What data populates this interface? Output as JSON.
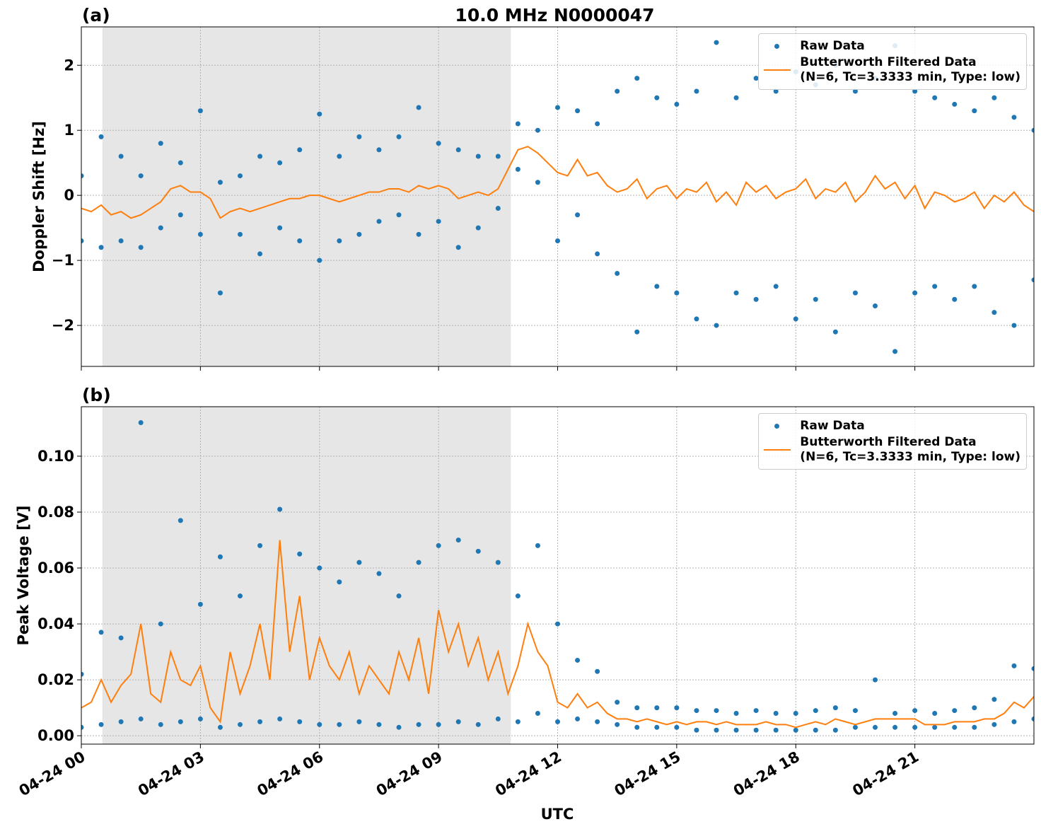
{
  "chart_data": [
    {
      "type": "scatter",
      "panel_label": "(a)",
      "title": "10.0 MHz N0000047",
      "y_label": "Doppler Shift [Hz]",
      "xlim": [
        0,
        24
      ],
      "ylim": [
        -2.63,
        2.59
      ],
      "yticks": [
        {
          "value": -2,
          "label": "−2"
        },
        {
          "value": -1,
          "label": "−1"
        },
        0,
        1,
        2
      ],
      "grid": true,
      "legend": "upper right",
      "shaded_span": [
        0.53,
        10.82
      ],
      "shade_color": "#e6e6e6",
      "series": [
        {
          "name": "Raw Data",
          "kind": "scatter",
          "color": "#1f77b4",
          "x": [
            0,
            0,
            0.5,
            0.5,
            1,
            1,
            1.5,
            1.5,
            2,
            2,
            2.5,
            2.5,
            3,
            3,
            3.5,
            3.5,
            4,
            4,
            4.5,
            4.5,
            5,
            5,
            5.5,
            5.5,
            6,
            6,
            6.5,
            6.5,
            7,
            7,
            7.5,
            7.5,
            8,
            8,
            8.5,
            8.5,
            9,
            9,
            9.5,
            9.5,
            10,
            10,
            10.5,
            10.5,
            11,
            11,
            11.5,
            11.5,
            12,
            12,
            12.5,
            12.5,
            13,
            13,
            13.5,
            13.5,
            14,
            14,
            14.5,
            14.5,
            15,
            15,
            15.5,
            15.5,
            16,
            16,
            16.5,
            16.5,
            17,
            17,
            17.5,
            17.5,
            18,
            18,
            18.5,
            18.5,
            19,
            19,
            19.5,
            19.5,
            20,
            20,
            20.5,
            20.5,
            21,
            21,
            21.5,
            21.5,
            22,
            22,
            22.5,
            22.5,
            23,
            23,
            23.5,
            23.5,
            24,
            24
          ],
          "values": [
            0.3,
            -0.7,
            0.9,
            -0.8,
            0.6,
            -0.7,
            0.3,
            -0.8,
            0.8,
            -0.5,
            0.5,
            -0.3,
            1.3,
            -0.6,
            0.2,
            -1.5,
            0.3,
            -0.6,
            0.6,
            -0.9,
            0.5,
            -0.5,
            0.7,
            -0.7,
            1.25,
            -1.0,
            0.6,
            -0.7,
            0.9,
            -0.6,
            0.7,
            -0.4,
            0.9,
            -0.3,
            1.35,
            -0.6,
            0.8,
            -0.4,
            0.7,
            -0.8,
            0.6,
            -0.5,
            0.6,
            -0.2,
            1.1,
            0.4,
            1.0,
            0.2,
            1.35,
            -0.7,
            1.3,
            -0.3,
            1.1,
            -0.9,
            1.6,
            -1.2,
            1.8,
            -2.1,
            1.5,
            -1.4,
            1.4,
            -1.5,
            1.6,
            -1.9,
            2.35,
            -2.0,
            1.5,
            -1.5,
            1.8,
            -1.6,
            1.6,
            -1.4,
            1.9,
            -1.9,
            1.7,
            -1.6,
            2.0,
            -2.1,
            1.6,
            -1.5,
            1.8,
            -1.7,
            2.3,
            -2.4,
            1.6,
            -1.5,
            1.5,
            -1.4,
            1.4,
            -1.6,
            1.3,
            -1.4,
            1.5,
            -1.8,
            1.2,
            -2.0,
            1.0,
            -1.3
          ]
        },
        {
          "name": "Butterworth Filtered Data\n(N=6, Tc=3.3333 min, Type: low)",
          "kind": "line",
          "color": "#ff7f0e",
          "x": [
            0,
            0.25,
            0.5,
            0.75,
            1,
            1.25,
            1.5,
            1.75,
            2,
            2.25,
            2.5,
            2.75,
            3,
            3.25,
            3.5,
            3.75,
            4,
            4.25,
            4.5,
            4.75,
            5,
            5.25,
            5.5,
            5.75,
            6,
            6.25,
            6.5,
            6.75,
            7,
            7.25,
            7.5,
            7.75,
            8,
            8.25,
            8.5,
            8.75,
            9,
            9.25,
            9.5,
            9.75,
            10,
            10.25,
            10.5,
            10.75,
            11,
            11.25,
            11.5,
            11.75,
            12,
            12.25,
            12.5,
            12.75,
            13,
            13.25,
            13.5,
            13.75,
            14,
            14.25,
            14.5,
            14.75,
            15,
            15.25,
            15.5,
            15.75,
            16,
            16.25,
            16.5,
            16.75,
            17,
            17.25,
            17.5,
            17.75,
            18,
            18.25,
            18.5,
            18.75,
            19,
            19.25,
            19.5,
            19.75,
            20,
            20.25,
            20.5,
            20.75,
            21,
            21.25,
            21.5,
            21.75,
            22,
            22.25,
            22.5,
            22.75,
            23,
            23.25,
            23.5,
            23.75,
            24
          ],
          "values": [
            -0.2,
            -0.25,
            -0.15,
            -0.3,
            -0.25,
            -0.35,
            -0.3,
            -0.2,
            -0.1,
            0.1,
            0.15,
            0.05,
            0.05,
            -0.05,
            -0.35,
            -0.25,
            -0.2,
            -0.25,
            -0.2,
            -0.15,
            -0.1,
            -0.05,
            -0.05,
            0,
            0,
            -0.05,
            -0.1,
            -0.05,
            0,
            0.05,
            0.05,
            0.1,
            0.1,
            0.05,
            0.15,
            0.1,
            0.15,
            0.1,
            -0.05,
            0,
            0.05,
            0,
            0.1,
            0.4,
            0.7,
            0.75,
            0.65,
            0.5,
            0.35,
            0.3,
            0.55,
            0.3,
            0.35,
            0.15,
            0.05,
            0.1,
            0.25,
            -0.05,
            0.1,
            0.15,
            -0.05,
            0.1,
            0.05,
            0.2,
            -0.1,
            0.05,
            -0.15,
            0.2,
            0.05,
            0.15,
            -0.05,
            0.05,
            0.1,
            0.25,
            -0.05,
            0.1,
            0.05,
            0.2,
            -0.1,
            0.05,
            0.3,
            0.1,
            0.2,
            -0.05,
            0.15,
            -0.2,
            0.05,
            0,
            -0.1,
            -0.05,
            0.05,
            -0.2,
            0,
            -0.1,
            0.05,
            -0.15,
            -0.25
          ]
        }
      ]
    },
    {
      "type": "scatter",
      "panel_label": "(b)",
      "y_label": "Peak Voltage [V]",
      "x_label": "UTC",
      "xlim": [
        0,
        24
      ],
      "ylim": [
        -0.003,
        0.1177
      ],
      "xticks": [
        {
          "value": 0,
          "label": "04-24 00"
        },
        {
          "value": 3,
          "label": "04-24 03"
        },
        {
          "value": 6,
          "label": "04-24 06"
        },
        {
          "value": 9,
          "label": "04-24 09"
        },
        {
          "value": 12,
          "label": "04-24 12"
        },
        {
          "value": 15,
          "label": "04-24 15"
        },
        {
          "value": 18,
          "label": "04-24 18"
        },
        {
          "value": 21,
          "label": "04-24 21"
        }
      ],
      "yticks": [
        {
          "value": 0,
          "label": "0.00"
        },
        {
          "value": 0.02,
          "label": "0.02"
        },
        {
          "value": 0.04,
          "label": "0.04"
        },
        {
          "value": 0.06,
          "label": "0.06"
        },
        {
          "value": 0.08,
          "label": "0.08"
        },
        {
          "value": 0.1,
          "label": "0.10"
        }
      ],
      "grid": true,
      "legend": "upper right",
      "shaded_span": [
        0.53,
        10.82
      ],
      "shade_color": "#e6e6e6",
      "series": [
        {
          "name": "Raw Data",
          "kind": "scatter",
          "color": "#1f77b4",
          "x": [
            0,
            0,
            0.5,
            0.5,
            1,
            1,
            1.5,
            1.5,
            2,
            2,
            2.5,
            2.5,
            3,
            3,
            3.5,
            3.5,
            4,
            4,
            4.5,
            4.5,
            5,
            5,
            5.5,
            5.5,
            6,
            6,
            6.5,
            6.5,
            7,
            7,
            7.5,
            7.5,
            8,
            8,
            8.5,
            8.5,
            9,
            9,
            9.5,
            9.5,
            10,
            10,
            10.5,
            10.5,
            11,
            11,
            11.5,
            11.5,
            12,
            12,
            12.5,
            12.5,
            13,
            13,
            13.5,
            13.5,
            14,
            14,
            14.5,
            14.5,
            15,
            15,
            15.5,
            15.5,
            16,
            16,
            16.5,
            16.5,
            17,
            17,
            17.5,
            17.5,
            18,
            18,
            18.5,
            18.5,
            19,
            19,
            19.5,
            19.5,
            20,
            20,
            20.5,
            20.5,
            21,
            21,
            21.5,
            21.5,
            22,
            22,
            22.5,
            22.5,
            23,
            23,
            23.5,
            23.5,
            24,
            24
          ],
          "values": [
            0.022,
            0.003,
            0.037,
            0.004,
            0.035,
            0.005,
            0.112,
            0.006,
            0.04,
            0.004,
            0.077,
            0.005,
            0.047,
            0.006,
            0.064,
            0.003,
            0.05,
            0.004,
            0.068,
            0.005,
            0.081,
            0.006,
            0.065,
            0.005,
            0.06,
            0.004,
            0.055,
            0.004,
            0.062,
            0.005,
            0.058,
            0.004,
            0.05,
            0.003,
            0.062,
            0.004,
            0.068,
            0.004,
            0.07,
            0.005,
            0.066,
            0.004,
            0.062,
            0.006,
            0.05,
            0.005,
            0.068,
            0.008,
            0.04,
            0.005,
            0.027,
            0.006,
            0.023,
            0.005,
            0.012,
            0.004,
            0.01,
            0.003,
            0.01,
            0.003,
            0.01,
            0.003,
            0.009,
            0.002,
            0.009,
            0.002,
            0.008,
            0.002,
            0.009,
            0.002,
            0.008,
            0.002,
            0.008,
            0.002,
            0.009,
            0.002,
            0.01,
            0.002,
            0.009,
            0.003,
            0.02,
            0.003,
            0.008,
            0.003,
            0.009,
            0.003,
            0.008,
            0.003,
            0.009,
            0.003,
            0.01,
            0.003,
            0.013,
            0.004,
            0.025,
            0.005,
            0.024,
            0.006
          ]
        },
        {
          "name": "Butterworth Filtered Data\n(N=6, Tc=3.3333 min, Type: low)",
          "kind": "line",
          "color": "#ff7f0e",
          "x": [
            0,
            0.25,
            0.5,
            0.75,
            1,
            1.25,
            1.5,
            1.75,
            2,
            2.25,
            2.5,
            2.75,
            3,
            3.25,
            3.5,
            3.75,
            4,
            4.25,
            4.5,
            4.75,
            5,
            5.25,
            5.5,
            5.75,
            6,
            6.25,
            6.5,
            6.75,
            7,
            7.25,
            7.5,
            7.75,
            8,
            8.25,
            8.5,
            8.75,
            9,
            9.25,
            9.5,
            9.75,
            10,
            10.25,
            10.5,
            10.75,
            11,
            11.25,
            11.5,
            11.75,
            12,
            12.25,
            12.5,
            12.75,
            13,
            13.25,
            13.5,
            13.75,
            14,
            14.25,
            14.5,
            14.75,
            15,
            15.25,
            15.5,
            15.75,
            16,
            16.25,
            16.5,
            16.75,
            17,
            17.25,
            17.5,
            17.75,
            18,
            18.25,
            18.5,
            18.75,
            19,
            19.25,
            19.5,
            19.75,
            20,
            20.25,
            20.5,
            20.75,
            21,
            21.25,
            21.5,
            21.75,
            22,
            22.25,
            22.5,
            22.75,
            23,
            23.25,
            23.5,
            23.75,
            24
          ],
          "values": [
            0.01,
            0.012,
            0.02,
            0.012,
            0.018,
            0.022,
            0.04,
            0.015,
            0.012,
            0.03,
            0.02,
            0.018,
            0.025,
            0.01,
            0.005,
            0.03,
            0.015,
            0.025,
            0.04,
            0.02,
            0.07,
            0.03,
            0.05,
            0.02,
            0.035,
            0.025,
            0.02,
            0.03,
            0.015,
            0.025,
            0.02,
            0.015,
            0.03,
            0.02,
            0.035,
            0.015,
            0.045,
            0.03,
            0.04,
            0.025,
            0.035,
            0.02,
            0.03,
            0.015,
            0.025,
            0.04,
            0.03,
            0.025,
            0.012,
            0.01,
            0.015,
            0.01,
            0.012,
            0.008,
            0.006,
            0.006,
            0.005,
            0.006,
            0.005,
            0.004,
            0.005,
            0.004,
            0.005,
            0.005,
            0.004,
            0.005,
            0.004,
            0.004,
            0.004,
            0.005,
            0.004,
            0.004,
            0.003,
            0.004,
            0.005,
            0.004,
            0.006,
            0.005,
            0.004,
            0.005,
            0.006,
            0.006,
            0.006,
            0.006,
            0.006,
            0.004,
            0.004,
            0.004,
            0.005,
            0.005,
            0.005,
            0.006,
            0.006,
            0.008,
            0.012,
            0.01,
            0.014
          ]
        }
      ]
    }
  ]
}
